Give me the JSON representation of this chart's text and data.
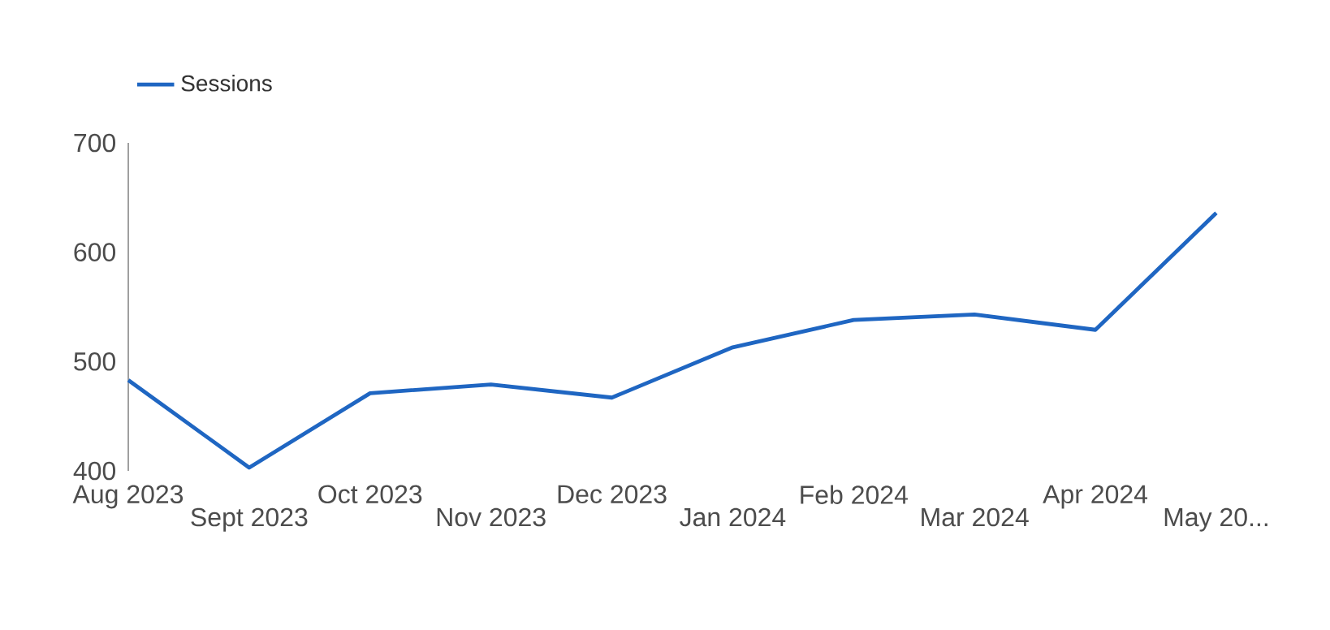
{
  "chart_data": {
    "type": "line",
    "categories": [
      "Aug 2023",
      "Sept 2023",
      "Oct 2023",
      "Nov 2023",
      "Dec 2023",
      "Jan 2024",
      "Feb 2024",
      "Mar 2024",
      "Apr 2024",
      "May 20..."
    ],
    "series": [
      {
        "name": "Sessions",
        "color": "#1f66c2",
        "values": [
          483,
          403,
          471,
          479,
          467,
          513,
          538,
          543,
          529,
          636
        ]
      }
    ],
    "ylim": [
      400,
      700
    ],
    "yticks": [
      400,
      500,
      600,
      700
    ],
    "legend": "top left",
    "grid": false,
    "marker": "none",
    "line_style": "solid"
  }
}
